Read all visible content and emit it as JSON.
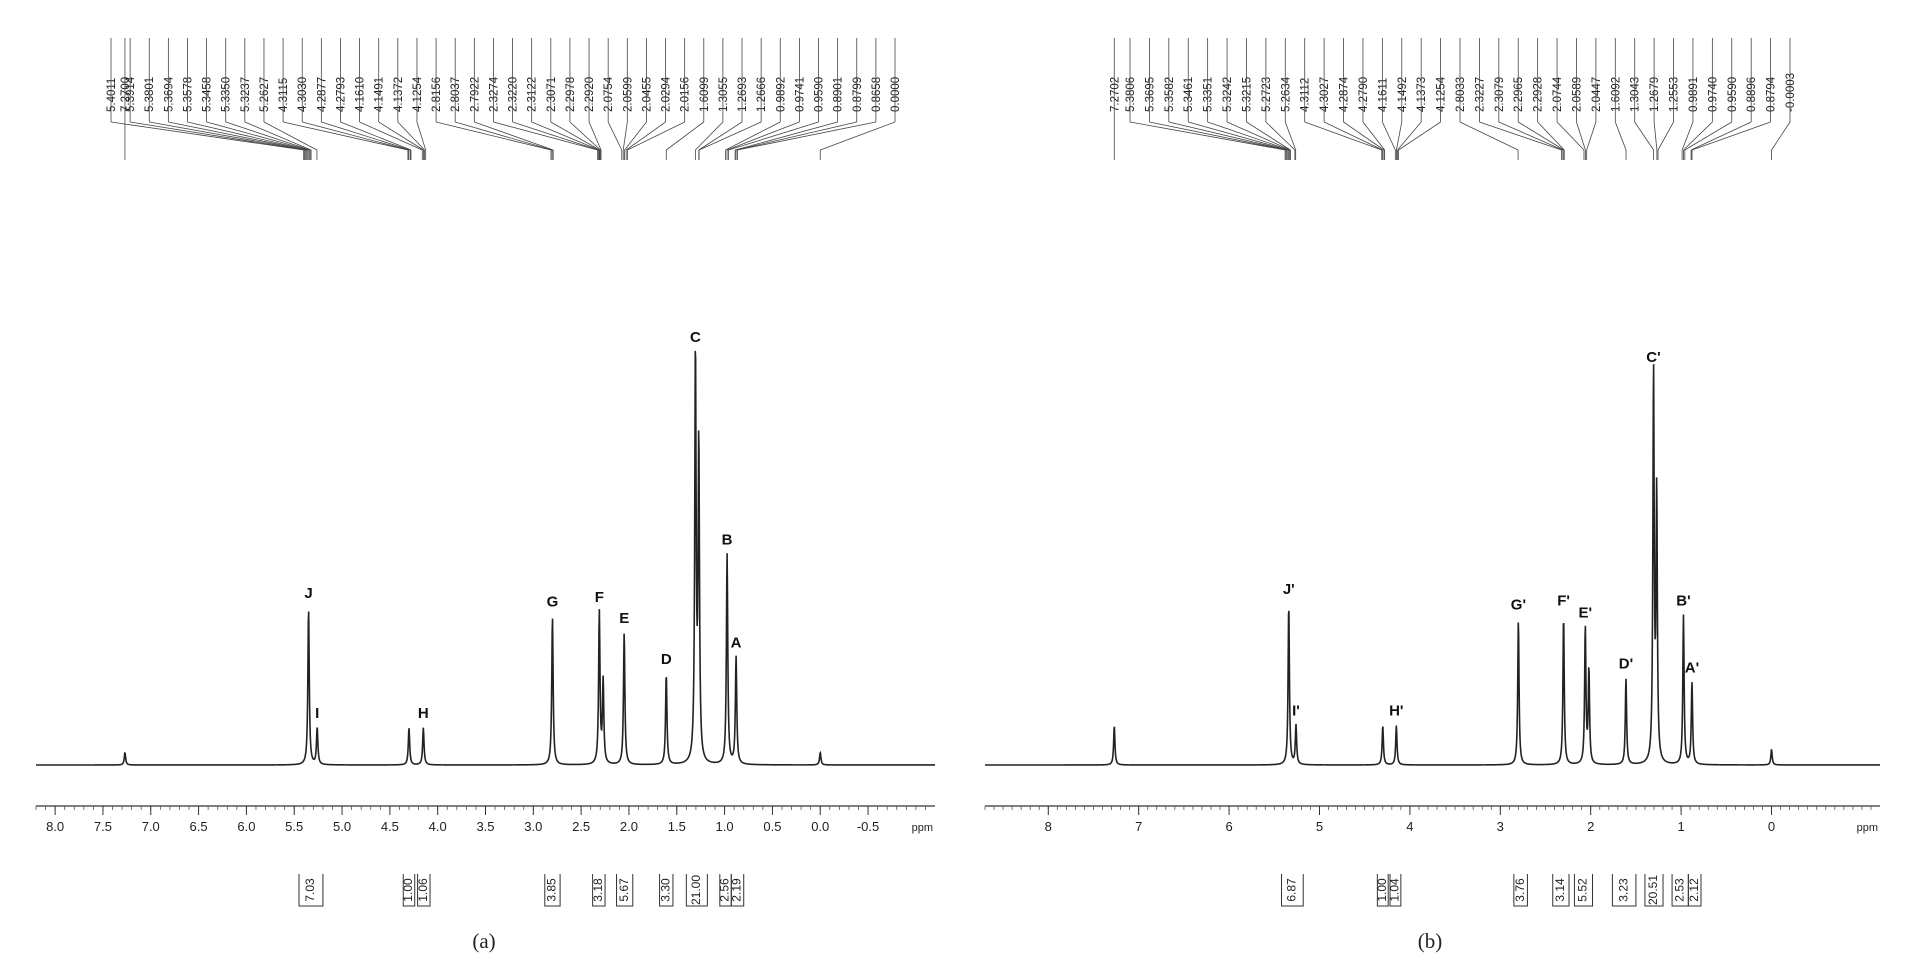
{
  "chart_data": [
    {
      "type": "line",
      "subtitle": "(a)",
      "xlabel": "ppm",
      "xlim": [
        8.2,
        -1.2
      ],
      "x_reversed": true,
      "x_ticks": [
        "8.0",
        "7.5",
        "7.0",
        "6.5",
        "6.0",
        "5.5",
        "5.0",
        "4.5",
        "4.0",
        "3.5",
        "3.0",
        "2.5",
        "2.0",
        "1.5",
        "1.0",
        "0.5",
        "0.0",
        "-0.5"
      ],
      "x_tick_values": [
        8.0,
        7.5,
        7.0,
        6.5,
        6.0,
        5.5,
        5.0,
        4.5,
        4.0,
        3.5,
        3.0,
        2.5,
        2.0,
        1.5,
        1.0,
        0.5,
        0.0,
        -0.5
      ],
      "peak_list": [
        "7.2700",
        "5.4011",
        "5.3914",
        "5.3801",
        "5.3694",
        "5.3578",
        "5.3458",
        "5.3350",
        "5.3237",
        "5.2627",
        "4.3115",
        "4.3030",
        "4.2877",
        "4.2793",
        "4.1610",
        "4.1491",
        "4.1372",
        "4.1254",
        "2.8156",
        "2.8037",
        "2.7922",
        "2.3274",
        "2.3220",
        "2.3122",
        "2.3071",
        "2.2978",
        "2.2920",
        "2.0754",
        "2.0599",
        "2.0455",
        "2.0294",
        "2.0156",
        "1.6099",
        "1.3055",
        "1.2693",
        "1.2666",
        "0.9892",
        "0.9741",
        "0.9590",
        "0.8901",
        "0.8799",
        "0.8658",
        "0.0000"
      ],
      "series": [
        {
          "peaks": [
            {
              "label": "",
              "x": 7.27,
              "y": 0.03
            },
            {
              "label": "J",
              "x": 5.35,
              "y": 0.38
            },
            {
              "label": "I",
              "x": 5.26,
              "y": 0.09
            },
            {
              "label": "",
              "x": 4.3,
              "y": 0.09
            },
            {
              "label": "H",
              "x": 4.15,
              "y": 0.09
            },
            {
              "label": "G",
              "x": 2.8,
              "y": 0.36
            },
            {
              "label": "F",
              "x": 2.31,
              "y": 0.37
            },
            {
              "label": "",
              "x": 2.27,
              "y": 0.2
            },
            {
              "label": "E",
              "x": 2.05,
              "y": 0.32
            },
            {
              "label": "D",
              "x": 1.61,
              "y": 0.22
            },
            {
              "label": "C",
              "x": 1.305,
              "y": 1.0
            },
            {
              "label": "",
              "x": 1.27,
              "y": 0.77
            },
            {
              "label": "B",
              "x": 0.974,
              "y": 0.51
            },
            {
              "label": "A",
              "x": 0.88,
              "y": 0.26
            },
            {
              "label": "",
              "x": 0.0,
              "y": 0.03
            }
          ]
        }
      ],
      "integrals": [
        {
          "value": "7.03",
          "from": 5.45,
          "to": 5.2
        },
        {
          "value": "1.00",
          "from": 4.36,
          "to": 4.24
        },
        {
          "value": "1.06",
          "from": 4.21,
          "to": 4.08
        },
        {
          "value": "3.85",
          "from": 2.88,
          "to": 2.72
        },
        {
          "value": "3.18",
          "from": 2.38,
          "to": 2.25
        },
        {
          "value": "5.67",
          "from": 2.13,
          "to": 1.96
        },
        {
          "value": "3.30",
          "from": 1.68,
          "to": 1.54
        },
        {
          "value": "21.00",
          "from": 1.4,
          "to": 1.18
        },
        {
          "value": "2.56",
          "from": 1.05,
          "to": 0.93
        },
        {
          "value": "2.19",
          "from": 0.93,
          "to": 0.8
        }
      ]
    },
    {
      "type": "line",
      "subtitle": "(b)",
      "xlabel": "ppm",
      "xlim": [
        8.7,
        -1.2
      ],
      "x_reversed": true,
      "x_ticks": [
        "8",
        "7",
        "6",
        "5",
        "4",
        "3",
        "2",
        "1",
        "0"
      ],
      "x_tick_values": [
        8,
        7,
        6,
        5,
        4,
        3,
        2,
        1,
        0
      ],
      "peak_list": [
        "7.2702",
        "5.3806",
        "5.3695",
        "5.3582",
        "5.3461",
        "5.3351",
        "5.3242",
        "5.3215",
        "5.2723",
        "5.2634",
        "4.3112",
        "4.3027",
        "4.2874",
        "4.2790",
        "4.1611",
        "4.1492",
        "4.1373",
        "4.1254",
        "2.8033",
        "2.3227",
        "2.3079",
        "2.2965",
        "2.2928",
        "2.0744",
        "2.0589",
        "2.0447",
        "1.6092",
        "1.3043",
        "1.2679",
        "1.2553",
        "0.9891",
        "0.9740",
        "0.9590",
        "0.8896",
        "0.8794",
        "-0.0003"
      ],
      "series": [
        {
          "peaks": [
            {
              "label": "",
              "x": 7.27,
              "y": 0.1
            },
            {
              "label": "J'",
              "x": 5.34,
              "y": 0.41
            },
            {
              "label": "I'",
              "x": 5.26,
              "y": 0.1
            },
            {
              "label": "",
              "x": 4.3,
              "y": 0.1
            },
            {
              "label": "H'",
              "x": 4.15,
              "y": 0.1
            },
            {
              "label": "G'",
              "x": 2.8,
              "y": 0.37
            },
            {
              "label": "F'",
              "x": 2.3,
              "y": 0.38
            },
            {
              "label": "E'",
              "x": 2.06,
              "y": 0.35
            },
            {
              "label": "",
              "x": 2.02,
              "y": 0.24
            },
            {
              "label": "D'",
              "x": 1.61,
              "y": 0.22
            },
            {
              "label": "C'",
              "x": 1.305,
              "y": 1.0
            },
            {
              "label": "",
              "x": 1.27,
              "y": 0.68
            },
            {
              "label": "B'",
              "x": 0.974,
              "y": 0.38
            },
            {
              "label": "A'",
              "x": 0.88,
              "y": 0.21
            },
            {
              "label": "",
              "x": 0.0,
              "y": 0.04
            }
          ]
        }
      ],
      "integrals": [
        {
          "value": "6.87",
          "from": 5.42,
          "to": 5.18
        },
        {
          "value": "1.00",
          "from": 4.36,
          "to": 4.24
        },
        {
          "value": "1.04",
          "from": 4.22,
          "to": 4.1
        },
        {
          "value": "3.76",
          "from": 2.85,
          "to": 2.7
        },
        {
          "value": "3.14",
          "from": 2.42,
          "to": 2.24
        },
        {
          "value": "5.52",
          "from": 2.18,
          "to": 1.98
        },
        {
          "value": "3.23",
          "from": 1.76,
          "to": 1.5
        },
        {
          "value": "20.51",
          "from": 1.4,
          "to": 1.2
        },
        {
          "value": "2.53",
          "from": 1.1,
          "to": 0.92
        },
        {
          "value": "2.12",
          "from": 0.92,
          "to": 0.78
        }
      ]
    }
  ]
}
